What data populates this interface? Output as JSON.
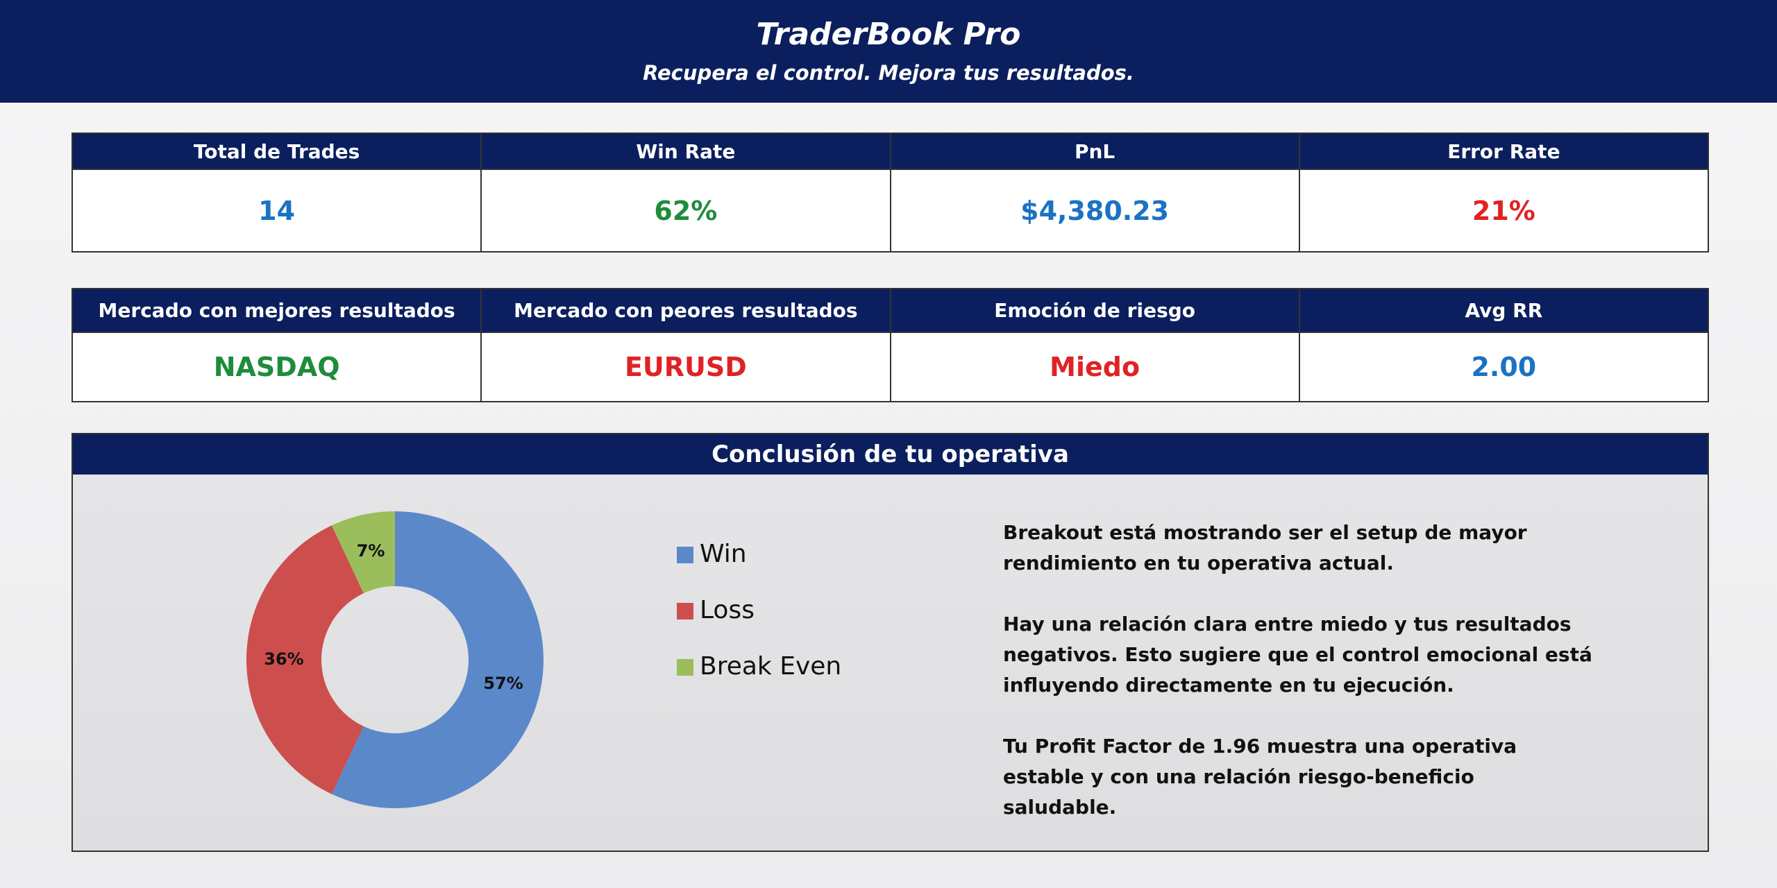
{
  "header": {
    "title": "TraderBook Pro",
    "subtitle": "Recupera el control. Mejora tus resultados."
  },
  "kpi_rows": [
    {
      "labels": [
        "Total de Trades",
        "Win Rate",
        "PnL",
        "Error Rate"
      ],
      "values": [
        "14",
        "62%",
        "$4,380.23",
        "21%"
      ],
      "colors": [
        "#1b72c4",
        "#1f8c3b",
        "#1b72c4",
        "#e02224"
      ]
    },
    {
      "labels": [
        "Mercado con mejores resultados",
        "Mercado con peores resultados",
        "Emoción de riesgo",
        "Avg RR"
      ],
      "values": [
        "NASDAQ",
        "EURUSD",
        "Miedo",
        "2.00"
      ],
      "colors": [
        "#1f8c3b",
        "#e02224",
        "#e02224",
        "#1b72c4"
      ]
    }
  ],
  "conclusion": {
    "title": "Conclusión de tu operativa",
    "paragraphs": [
      "Breakout está mostrando ser el setup de mayor rendimiento en tu operativa actual.",
      "Hay una relación clara entre miedo y tus resultados negativos. Esto sugiere que el control emocional está influyendo directamente en tu ejecución.",
      "Tu Profit Factor de 1.96 muestra una operativa estable y con una relación riesgo-beneficio saludable."
    ]
  },
  "chart_data": {
    "type": "donut",
    "categories": [
      "Win",
      "Loss",
      "Break Even"
    ],
    "values": [
      57,
      36,
      7
    ],
    "value_labels": [
      "57%",
      "36%",
      "7%"
    ],
    "colors": [
      "#5b88c9",
      "#cc4f4d",
      "#9bbd5b"
    ],
    "legend": "right"
  }
}
